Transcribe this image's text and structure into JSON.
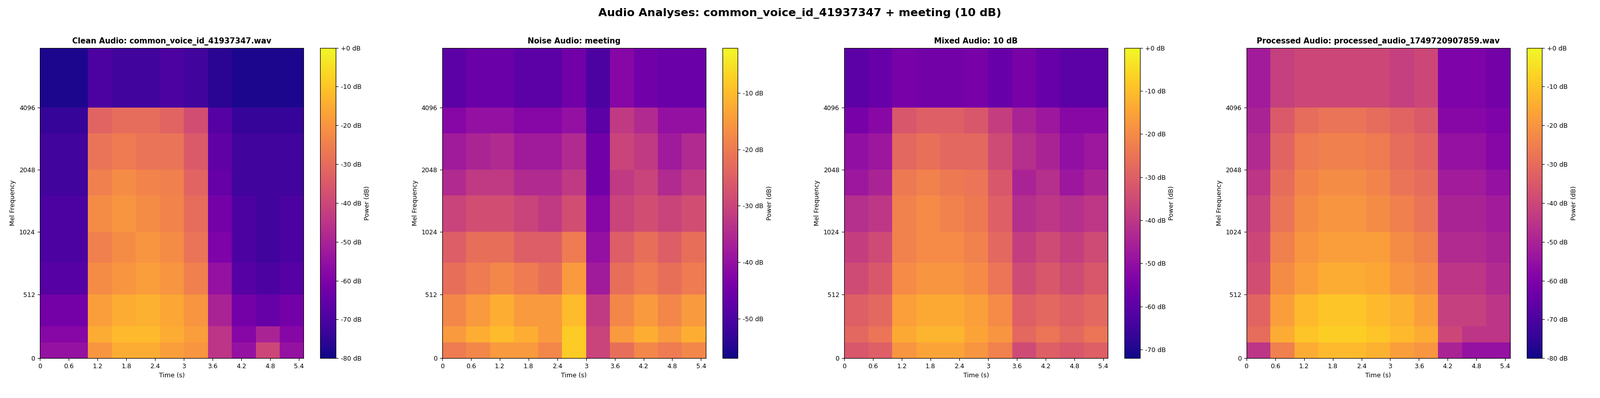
{
  "title": "Audio Analyses: common_voice_id_41937347 + meeting (10 dB)",
  "chart_data": [
    {
      "type": "heatmap",
      "title": "Clean Audio: common_voice_id_41937347.wav",
      "color": "plasma",
      "x_label": "Time (s)",
      "y_label": "Mel Frequency",
      "xlim": [
        0,
        5.5
      ],
      "xticks": [
        0,
        0.6,
        1.2,
        1.8,
        2.4,
        3,
        3.6,
        4.2,
        4.8,
        5.4
      ],
      "ylim": [
        0,
        8000
      ],
      "yticks": [
        0,
        512,
        1024,
        2048,
        4096
      ],
      "x_edges": [
        0,
        0.5,
        1,
        1.5,
        2,
        2.5,
        3,
        3.5,
        4,
        4.5,
        5,
        5.5
      ],
      "y_edges": [
        0,
        128,
        256,
        512,
        768,
        1024,
        1536,
        2048,
        3072,
        4096,
        8000
      ],
      "cells": [
        [
          -55,
          -55,
          -20,
          -15,
          -15,
          -18,
          -20,
          -45,
          -55,
          -40,
          -55
        ],
        [
          -58,
          -58,
          -15,
          -12,
          -12,
          -15,
          -18,
          -45,
          -58,
          -50,
          -58
        ],
        [
          -62,
          -62,
          -18,
          -15,
          -14,
          -16,
          -20,
          -50,
          -62,
          -65,
          -62
        ],
        [
          -68,
          -68,
          -22,
          -20,
          -18,
          -20,
          -25,
          -55,
          -68,
          -70,
          -68
        ],
        [
          -70,
          -70,
          -25,
          -22,
          -20,
          -22,
          -28,
          -60,
          -70,
          -72,
          -70
        ],
        [
          -70,
          -70,
          -22,
          -20,
          -22,
          -24,
          -30,
          -62,
          -70,
          -72,
          -70
        ],
        [
          -72,
          -72,
          -25,
          -22,
          -24,
          -25,
          -32,
          -65,
          -72,
          -72,
          -72
        ],
        [
          -72,
          -72,
          -28,
          -26,
          -28,
          -28,
          -35,
          -66,
          -72,
          -72,
          -72
        ],
        [
          -74,
          -74,
          -32,
          -30,
          -30,
          -32,
          -38,
          -68,
          -74,
          -74,
          -74
        ],
        [
          -78,
          -78,
          -70,
          -72,
          -72,
          -70,
          -72,
          -76,
          -78,
          -78,
          -78
        ]
      ],
      "colorbar": {
        "label": "Power (dB)",
        "range": [
          -80,
          0
        ],
        "ticks": [
          {
            "value": 0,
            "label": "+0 dB"
          },
          {
            "value": -10,
            "label": "-10 dB"
          },
          {
            "value": -20,
            "label": "-20 dB"
          },
          {
            "value": -30,
            "label": "-30 dB"
          },
          {
            "value": -40,
            "label": "-40 dB"
          },
          {
            "value": -50,
            "label": "-50 dB"
          },
          {
            "value": -60,
            "label": "-60 dB"
          },
          {
            "value": -70,
            "label": "-70 dB"
          },
          {
            "value": -80,
            "label": "-80 dB"
          }
        ]
      }
    },
    {
      "type": "heatmap",
      "title": "Noise Audio: meeting",
      "color": "plasma",
      "x_label": "Time (s)",
      "y_label": "Mel Frequency",
      "xlim": [
        0,
        5.5
      ],
      "xticks": [
        0,
        0.6,
        1.2,
        1.8,
        2.4,
        3,
        3.6,
        4.2,
        4.8,
        5.4
      ],
      "ylim": [
        0,
        8000
      ],
      "yticks": [
        0,
        512,
        1024,
        2048,
        4096
      ],
      "x_edges": [
        0,
        0.5,
        1,
        1.5,
        2,
        2.5,
        3,
        3.5,
        4,
        4.5,
        5,
        5.5
      ],
      "y_edges": [
        0,
        128,
        256,
        512,
        768,
        1024,
        1536,
        2048,
        3072,
        4096,
        8000
      ],
      "cells": [
        [
          -20,
          -18,
          -15,
          -15,
          -18,
          -8,
          -30,
          -22,
          -18,
          -20,
          -18
        ],
        [
          -15,
          -12,
          -10,
          -12,
          -15,
          -8,
          -30,
          -15,
          -12,
          -15,
          -12
        ],
        [
          -18,
          -15,
          -12,
          -15,
          -15,
          -10,
          -32,
          -18,
          -15,
          -18,
          -15
        ],
        [
          -22,
          -20,
          -18,
          -20,
          -22,
          -15,
          -38,
          -22,
          -20,
          -22,
          -20
        ],
        [
          -25,
          -22,
          -22,
          -25,
          -25,
          -20,
          -40,
          -25,
          -22,
          -25,
          -22
        ],
        [
          -30,
          -28,
          -28,
          -30,
          -32,
          -28,
          -42,
          -30,
          -28,
          -30,
          -28
        ],
        [
          -35,
          -32,
          -32,
          -35,
          -35,
          -32,
          -45,
          -32,
          -30,
          -35,
          -32
        ],
        [
          -38,
          -36,
          -35,
          -38,
          -38,
          -35,
          -45,
          -30,
          -32,
          -38,
          -35
        ],
        [
          -42,
          -40,
          -40,
          -42,
          -42,
          -40,
          -48,
          -32,
          -35,
          -40,
          -40
        ],
        [
          -48,
          -46,
          -46,
          -48,
          -48,
          -45,
          -50,
          -42,
          -45,
          -46,
          -46
        ]
      ],
      "colorbar": {
        "label": "Power (dB)",
        "range": [
          -57,
          -2
        ],
        "ticks": [
          {
            "value": -10,
            "label": "-10 dB"
          },
          {
            "value": -20,
            "label": "-20 dB"
          },
          {
            "value": -30,
            "label": "-30 dB"
          },
          {
            "value": -40,
            "label": "-40 dB"
          },
          {
            "value": -50,
            "label": "-50 dB"
          }
        ]
      }
    },
    {
      "type": "heatmap",
      "title": "Mixed Audio: 10 dB",
      "color": "plasma",
      "x_label": "Time (s)",
      "y_label": "Mel Frequency",
      "xlim": [
        0,
        5.5
      ],
      "xticks": [
        0,
        0.6,
        1.2,
        1.8,
        2.4,
        3,
        3.6,
        4.2,
        4.8,
        5.4
      ],
      "ylim": [
        0,
        8000
      ],
      "yticks": [
        0,
        512,
        1024,
        2048,
        4096
      ],
      "x_edges": [
        0,
        0.5,
        1,
        1.5,
        2,
        2.5,
        3,
        3.5,
        4,
        4.5,
        5,
        5.5
      ],
      "y_edges": [
        0,
        128,
        256,
        512,
        768,
        1024,
        1536,
        2048,
        3072,
        4096,
        8000
      ],
      "cells": [
        [
          -32,
          -30,
          -18,
          -15,
          -15,
          -18,
          -22,
          -35,
          -30,
          -32,
          -30
        ],
        [
          -28,
          -25,
          -14,
          -12,
          -12,
          -15,
          -18,
          -28,
          -25,
          -28,
          -25
        ],
        [
          -30,
          -28,
          -16,
          -14,
          -14,
          -16,
          -20,
          -30,
          -28,
          -30,
          -28
        ],
        [
          -35,
          -32,
          -20,
          -18,
          -18,
          -20,
          -25,
          -35,
          -32,
          -35,
          -32
        ],
        [
          -38,
          -35,
          -22,
          -20,
          -20,
          -22,
          -28,
          -38,
          -35,
          -38,
          -35
        ],
        [
          -42,
          -40,
          -22,
          -20,
          -22,
          -24,
          -30,
          -42,
          -40,
          -42,
          -40
        ],
        [
          -48,
          -45,
          -24,
          -22,
          -24,
          -25,
          -32,
          -45,
          -42,
          -48,
          -45
        ],
        [
          -50,
          -48,
          -28,
          -26,
          -28,
          -28,
          -35,
          -42,
          -45,
          -50,
          -48
        ],
        [
          -55,
          -52,
          -32,
          -30,
          -30,
          -32,
          -38,
          -45,
          -48,
          -52,
          -52
        ],
        [
          -60,
          -58,
          -55,
          -56,
          -56,
          -55,
          -58,
          -55,
          -58,
          -60,
          -60
        ]
      ],
      "colorbar": {
        "label": "Power (dB)",
        "range": [
          -72,
          0
        ],
        "ticks": [
          {
            "value": 0,
            "label": "+0 dB"
          },
          {
            "value": -10,
            "label": "-10 dB"
          },
          {
            "value": -20,
            "label": "-20 dB"
          },
          {
            "value": -30,
            "label": "-30 dB"
          },
          {
            "value": -40,
            "label": "-40 dB"
          },
          {
            "value": -50,
            "label": "-50 dB"
          },
          {
            "value": -60,
            "label": "-60 dB"
          },
          {
            "value": -70,
            "label": "-70 dB"
          }
        ]
      }
    },
    {
      "type": "heatmap",
      "title": "Processed Audio: processed_audio_1749720907859.wav",
      "color": "plasma",
      "x_label": "Time (s)",
      "y_label": "Mel Frequency",
      "xlim": [
        0,
        5.5
      ],
      "xticks": [
        0,
        0.6,
        1.2,
        1.8,
        2.4,
        3,
        3.6,
        4.2,
        4.8,
        5.4
      ],
      "ylim": [
        0,
        8000
      ],
      "yticks": [
        0,
        512,
        1024,
        2048,
        4096
      ],
      "x_edges": [
        0,
        0.5,
        1,
        1.5,
        2,
        2.5,
        3,
        3.5,
        4,
        4.5,
        5,
        5.5
      ],
      "y_edges": [
        0,
        128,
        256,
        512,
        768,
        1024,
        1536,
        2048,
        3072,
        4096,
        8000
      ],
      "cells": [
        [
          -45,
          -25,
          -15,
          -12,
          -12,
          -14,
          -18,
          -20,
          -50,
          -55,
          -55
        ],
        [
          -30,
          -15,
          -10,
          -8,
          -8,
          -10,
          -12,
          -15,
          -40,
          -45,
          -45
        ],
        [
          -32,
          -18,
          -12,
          -10,
          -10,
          -12,
          -14,
          -18,
          -42,
          -42,
          -45
        ],
        [
          -38,
          -22,
          -18,
          -15,
          -15,
          -16,
          -20,
          -22,
          -45,
          -45,
          -48
        ],
        [
          -40,
          -25,
          -20,
          -18,
          -18,
          -18,
          -22,
          -25,
          -48,
          -48,
          -50
        ],
        [
          -42,
          -28,
          -22,
          -20,
          -20,
          -22,
          -25,
          -28,
          -50,
          -50,
          -52
        ],
        [
          -45,
          -30,
          -24,
          -22,
          -22,
          -24,
          -28,
          -30,
          -52,
          -52,
          -55
        ],
        [
          -48,
          -32,
          -26,
          -25,
          -25,
          -26,
          -30,
          -32,
          -55,
          -55,
          -58
        ],
        [
          -50,
          -35,
          -30,
          -28,
          -28,
          -30,
          -32,
          -35,
          -58,
          -58,
          -60
        ],
        [
          -52,
          -42,
          -40,
          -40,
          -40,
          -40,
          -42,
          -40,
          -60,
          -60,
          -62
        ]
      ],
      "colorbar": {
        "label": "Power (dB)",
        "range": [
          -80,
          0
        ],
        "ticks": [
          {
            "value": 0,
            "label": "+0 dB"
          },
          {
            "value": -10,
            "label": "-10 dB"
          },
          {
            "value": -20,
            "label": "-20 dB"
          },
          {
            "value": -30,
            "label": "-30 dB"
          },
          {
            "value": -40,
            "label": "-40 dB"
          },
          {
            "value": -50,
            "label": "-50 dB"
          },
          {
            "value": -60,
            "label": "-60 dB"
          },
          {
            "value": -70,
            "label": "-70 dB"
          },
          {
            "value": -80,
            "label": "-80 dB"
          }
        ]
      }
    }
  ]
}
